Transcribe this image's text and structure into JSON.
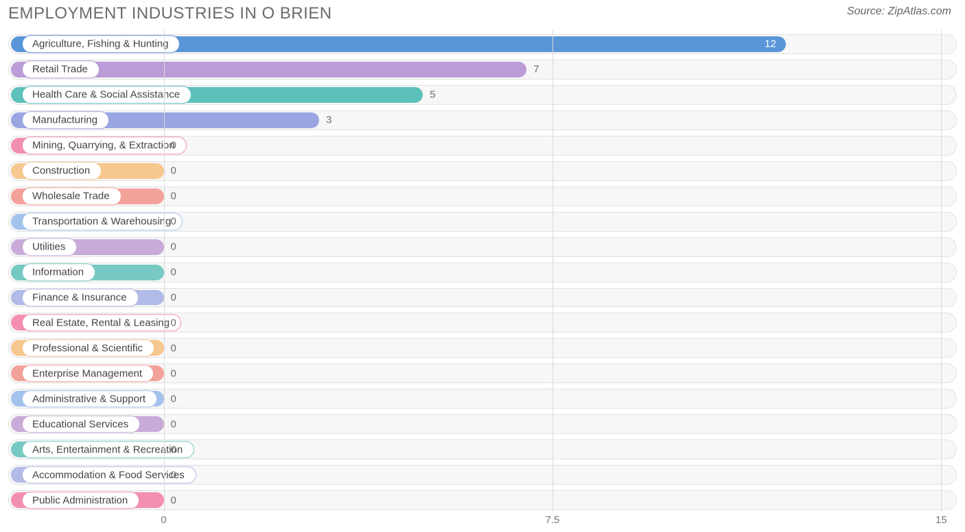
{
  "title": "EMPLOYMENT INDUSTRIES IN O BRIEN",
  "source": "Source: ZipAtlas.com",
  "chart": {
    "type": "bar",
    "orientation": "horizontal",
    "xlim": [
      -3,
      15.3
    ],
    "ticks": [
      {
        "value": 0,
        "label": "0"
      },
      {
        "value": 7.5,
        "label": "7.5"
      },
      {
        "value": 15,
        "label": "15"
      }
    ],
    "grid_color": "#d9d9d9",
    "track_bg": "#f7f7f7",
    "track_border": "#e2e2e2",
    "label_fontsize": 15,
    "title_fontsize": 24,
    "title_color": "#6b6b6b",
    "value_label_color_inside": "#ffffff",
    "value_label_color_outside": "#6b6b6b",
    "value_inside_threshold": 11,
    "bars": [
      {
        "label": "Agriculture, Fishing & Hunting",
        "value": 12,
        "color": "#5a95d8",
        "value_str": "12"
      },
      {
        "label": "Retail Trade",
        "value": 7,
        "color": "#bb9cd6",
        "value_str": "7"
      },
      {
        "label": "Health Care & Social Assistance",
        "value": 5,
        "color": "#5cc1bb",
        "value_str": "5"
      },
      {
        "label": "Manufacturing",
        "value": 3,
        "color": "#9aa6e1",
        "value_str": "3"
      },
      {
        "label": "Mining, Quarrying, & Extraction",
        "value": 0,
        "color": "#f38fb0",
        "value_str": "0"
      },
      {
        "label": "Construction",
        "value": 0,
        "color": "#f6c78e",
        "value_str": "0"
      },
      {
        "label": "Wholesale Trade",
        "value": 0,
        "color": "#f3a29a",
        "value_str": "0"
      },
      {
        "label": "Transportation & Warehousing",
        "value": 0,
        "color": "#a3c3ec",
        "value_str": "0"
      },
      {
        "label": "Utilities",
        "value": 0,
        "color": "#c9abd9",
        "value_str": "0"
      },
      {
        "label": "Information",
        "value": 0,
        "color": "#77c9c3",
        "value_str": "0"
      },
      {
        "label": "Finance & Insurance",
        "value": 0,
        "color": "#b2bbe7",
        "value_str": "0"
      },
      {
        "label": "Real Estate, Rental & Leasing",
        "value": 0,
        "color": "#f38fb0",
        "value_str": "0"
      },
      {
        "label": "Professional & Scientific",
        "value": 0,
        "color": "#f6c78e",
        "value_str": "0"
      },
      {
        "label": "Enterprise Management",
        "value": 0,
        "color": "#f3a29a",
        "value_str": "0"
      },
      {
        "label": "Administrative & Support",
        "value": 0,
        "color": "#a3c3ec",
        "value_str": "0"
      },
      {
        "label": "Educational Services",
        "value": 0,
        "color": "#c9abd9",
        "value_str": "0"
      },
      {
        "label": "Arts, Entertainment & Recreation",
        "value": 0,
        "color": "#77c9c3",
        "value_str": "0"
      },
      {
        "label": "Accommodation & Food Services",
        "value": 0,
        "color": "#b2bbe7",
        "value_str": "0"
      },
      {
        "label": "Public Administration",
        "value": 0,
        "color": "#f38fb0",
        "value_str": "0"
      }
    ]
  }
}
